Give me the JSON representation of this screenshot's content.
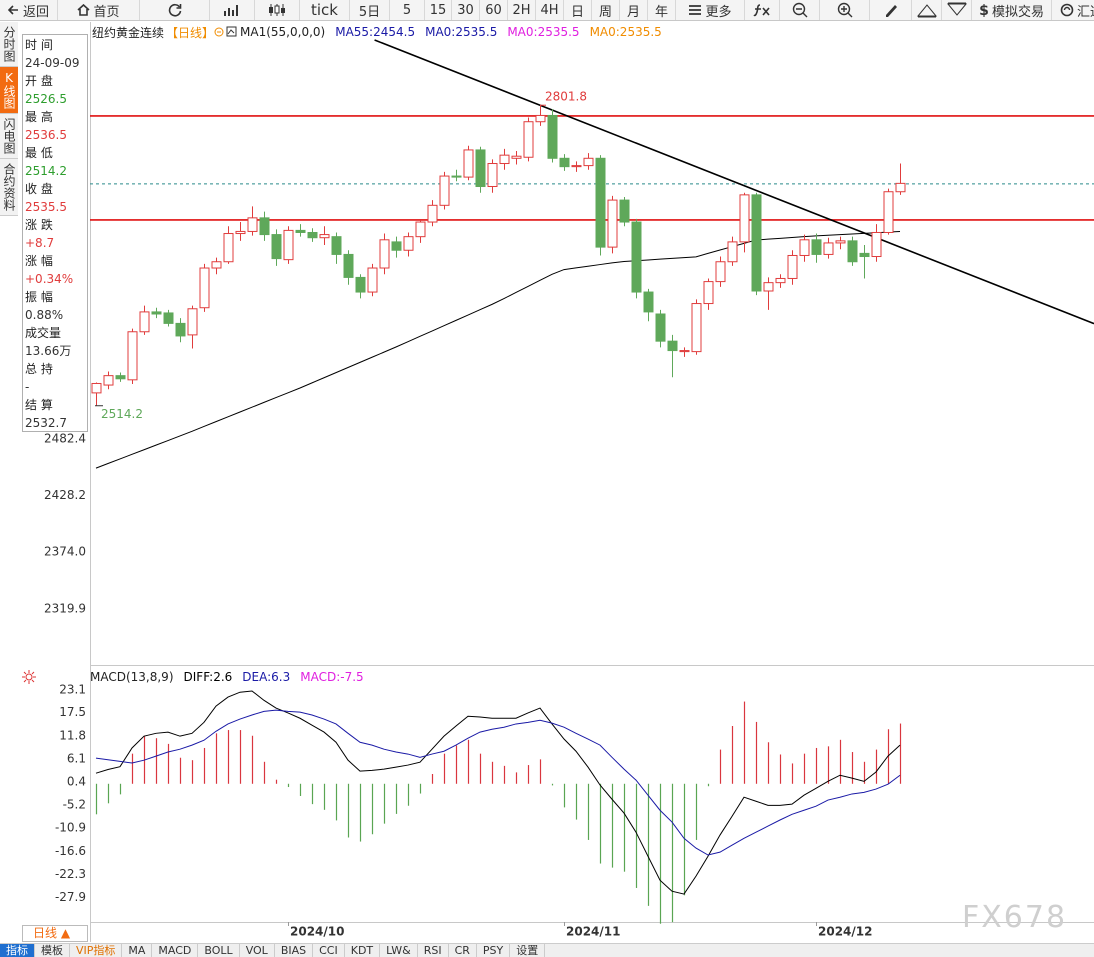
{
  "toolbar": {
    "items": [
      "返回",
      "首页",
      "tick",
      "5日",
      "5",
      "15",
      "30",
      "60",
      "2H",
      "4H",
      "日",
      "周",
      "月",
      "年",
      "更多",
      "模拟交易",
      "汇通"
    ]
  },
  "sidebar": {
    "tabs": [
      "分时图",
      "K线图",
      "闪电图",
      "合约资料"
    ],
    "active": 1
  },
  "info_panel": {
    "rows": [
      {
        "label": "时 间",
        "value": "24-09-09",
        "color": "#333333"
      },
      {
        "label": "开 盘",
        "value": "2526.5",
        "color": "#2e9e2e"
      },
      {
        "label": "最 高",
        "value": "2536.5",
        "color": "#e03c3c"
      },
      {
        "label": "最 低",
        "value": "2514.2",
        "color": "#2e9e2e"
      },
      {
        "label": "收 盘",
        "value": "2535.5",
        "color": "#e03c3c"
      },
      {
        "label": "涨 跌",
        "value": "+8.7",
        "color": "#e03c3c"
      },
      {
        "label": "涨 幅",
        "value": "+0.34%",
        "color": "#e03c3c"
      },
      {
        "label": "振 幅",
        "value": "0.88%",
        "color": "#333333"
      },
      {
        "label": "成交量",
        "value": "13.66万",
        "color": "#333333"
      },
      {
        "label": "总 持",
        "value": "-",
        "color": "#333333"
      },
      {
        "label": "结 算",
        "value": "2532.7",
        "color": "#333333"
      }
    ]
  },
  "chart_data": [
    {
      "type": "candlestick",
      "title": "纽约黄金连续",
      "period": "【日线】",
      "indicator": "MA1(55,0,0,0)",
      "legend_items": [
        {
          "label": "MA55:2454.5",
          "color": "#1a1aa6"
        },
        {
          "label": "MA0:2535.5",
          "color": "#1a1aa6"
        },
        {
          "label": "MA0:2535.5",
          "color": "#e020e0"
        },
        {
          "label": "MA0:2535.5",
          "color": "#f08c00"
        }
      ],
      "up_color": "#e03c3c",
      "down_color": "#5fa85a",
      "candles": [
        [
          2526.5,
          2536.5,
          2514.2,
          2535.5
        ],
        [
          2534,
          2547,
          2530,
          2543
        ],
        [
          2543,
          2546,
          2537,
          2540
        ],
        [
          2539,
          2588,
          2535,
          2585
        ],
        [
          2585,
          2610,
          2582,
          2604
        ],
        [
          2604,
          2608,
          2598,
          2602
        ],
        [
          2603,
          2606,
          2590,
          2593
        ],
        [
          2593,
          2598,
          2575,
          2581
        ],
        [
          2582,
          2610,
          2569,
          2607
        ],
        [
          2608,
          2650,
          2604,
          2646
        ],
        [
          2646,
          2656,
          2640,
          2652
        ],
        [
          2652,
          2686,
          2650,
          2679
        ],
        [
          2679,
          2690,
          2672,
          2681
        ],
        [
          2681,
          2705,
          2677,
          2694
        ],
        [
          2694,
          2700,
          2672,
          2678
        ],
        [
          2678,
          2683,
          2648,
          2655
        ],
        [
          2654,
          2686,
          2650,
          2682
        ],
        [
          2682,
          2688,
          2676,
          2680
        ],
        [
          2680,
          2684,
          2671,
          2675
        ],
        [
          2675,
          2686,
          2668,
          2678
        ],
        [
          2676,
          2680,
          2650,
          2659
        ],
        [
          2659,
          2663,
          2630,
          2637
        ],
        [
          2637,
          2640,
          2617,
          2623
        ],
        [
          2623,
          2650,
          2619,
          2646
        ],
        [
          2646,
          2679,
          2640,
          2673
        ],
        [
          2671,
          2676,
          2656,
          2663
        ],
        [
          2663,
          2680,
          2657,
          2676
        ],
        [
          2676,
          2692,
          2670,
          2690
        ],
        [
          2690,
          2711,
          2686,
          2706
        ],
        [
          2706,
          2738,
          2702,
          2734
        ],
        [
          2734,
          2740,
          2729,
          2733
        ],
        [
          2733,
          2763,
          2730,
          2759
        ],
        [
          2759,
          2762,
          2718,
          2724
        ],
        [
          2724,
          2750,
          2718,
          2746
        ],
        [
          2746,
          2760,
          2740,
          2754
        ],
        [
          2751,
          2758,
          2745,
          2753
        ],
        [
          2752,
          2790,
          2748,
          2786
        ],
        [
          2786,
          2801.8,
          2782,
          2792
        ],
        [
          2792,
          2798,
          2747,
          2751
        ],
        [
          2751,
          2755,
          2739,
          2743
        ],
        [
          2743,
          2748,
          2738,
          2744
        ],
        [
          2744,
          2756,
          2740,
          2751
        ],
        [
          2751,
          2754,
          2658,
          2666
        ],
        [
          2666,
          2715,
          2660,
          2711
        ],
        [
          2711,
          2714,
          2686,
          2690
        ],
        [
          2690,
          2693,
          2617,
          2623
        ],
        [
          2623,
          2626,
          2595,
          2604
        ],
        [
          2602,
          2606,
          2570,
          2576
        ],
        [
          2576,
          2582,
          2541.5,
          2567
        ],
        [
          2566,
          2570,
          2561,
          2567
        ],
        [
          2566,
          2616,
          2563,
          2612
        ],
        [
          2612,
          2636,
          2606,
          2633
        ],
        [
          2633,
          2657,
          2628,
          2652
        ],
        [
          2652,
          2676,
          2648,
          2671
        ],
        [
          2671,
          2718,
          2661,
          2716
        ],
        [
          2716,
          2718,
          2620,
          2624
        ],
        [
          2624,
          2637,
          2606,
          2632
        ],
        [
          2632,
          2640,
          2627,
          2636
        ],
        [
          2636,
          2663,
          2630,
          2658
        ],
        [
          2658,
          2678,
          2652,
          2673
        ],
        [
          2673,
          2679,
          2651,
          2659
        ],
        [
          2659,
          2675,
          2655,
          2670
        ],
        [
          2670,
          2676,
          2664,
          2672
        ],
        [
          2672,
          2676,
          2648,
          2652
        ],
        [
          2660,
          2668,
          2636,
          2657
        ],
        [
          2657,
          2688,
          2652,
          2680
        ],
        [
          2680,
          2722,
          2678,
          2719
        ],
        [
          2719,
          2746,
          2716,
          2727
        ]
      ],
      "ma": {
        "color": "#000000",
        "values": [
          2454.5,
          2458.9,
          2463.3,
          2467.7,
          2472.1,
          2476.5,
          2480.9,
          2485.3,
          2489.7,
          2494.4,
          2499,
          2503.6,
          2508.2,
          2512.8,
          2517.4,
          2522,
          2526.6,
          2531.2,
          2536.1,
          2541,
          2545.9,
          2550.8,
          2555.7,
          2560.6,
          2565.5,
          2570.4,
          2575.5,
          2580.6,
          2585.7,
          2590.8,
          2595.9,
          2601,
          2606.1,
          2611.2,
          2616.8,
          2622.6,
          2628.4,
          2634.2,
          2640,
          2644.5,
          2646.1,
          2647.7,
          2649.3,
          2650.9,
          2652.2,
          2653,
          2653.7,
          2654.5,
          2655.2,
          2656,
          2656.7,
          2660,
          2663.2,
          2666.4,
          2669.6,
          2672.8,
          2673.6,
          2674.4,
          2675.2,
          2676,
          2676.8,
          2677.4,
          2678,
          2678.6,
          2679.2,
          2679.8,
          2680.4,
          2681
        ]
      },
      "hlines": [
        {
          "value": 2791.5,
          "color": "#e01010"
        },
        {
          "value": 2692,
          "color": "#e01010"
        }
      ],
      "last_price_line_color": "#2a8a8a",
      "trendline": {
        "x": [
          37,
          67
        ],
        "y": [
          2801.8,
          2666
        ],
        "color": "#000000"
      },
      "ylim": [
        2266.1,
        2864.2
      ],
      "yticks": [
        2482.4,
        2428.2,
        {
          "value": 2374,
          "label": "2374.0"
        },
        2319.9
      ]
    },
    {
      "type": "macd",
      "title": "MACD(13,8,9)",
      "legend_items": [
        {
          "label": "DIFF:2.6",
          "color": "#000000"
        },
        {
          "label": "DEA:6.3",
          "color": "#1a1aa6"
        },
        {
          "label": "MACD:-7.5",
          "color": "#e020e0"
        }
      ],
      "categories": [
        null,
        null,
        null,
        null,
        null,
        null,
        null,
        null,
        null,
        null,
        null,
        null,
        null,
        null,
        null,
        null,
        "2024/10",
        null,
        null,
        null,
        null,
        null,
        null,
        null,
        null,
        null,
        null,
        null,
        null,
        null,
        null,
        null,
        null,
        null,
        null,
        null,
        null,
        null,
        null,
        "2024/11",
        null,
        null,
        null,
        null,
        null,
        null,
        null,
        null,
        null,
        null,
        null,
        null,
        null,
        null,
        null,
        null,
        null,
        null,
        null,
        null,
        "2024/12",
        null,
        null,
        null,
        null,
        null,
        null,
        null
      ],
      "series": [
        {
          "color": "#000000",
          "values": [
            2.6,
            3.5,
            4.2,
            8.8,
            11.7,
            12.4,
            12.7,
            11.7,
            12.4,
            15.1,
            19.1,
            21.3,
            22.5,
            22.8,
            20.5,
            18.6,
            17.4,
            16.1,
            14.4,
            12.7,
            10.2,
            5.8,
            3.1,
            3.3,
            3.6,
            4.1,
            4.6,
            5.3,
            8.5,
            11.7,
            14.2,
            16.6,
            16.4,
            16.1,
            16.1,
            16.1,
            17.4,
            18.6,
            14.7,
            11.0,
            8.0,
            4.1,
            -0.3,
            -3.8,
            -7.2,
            -11.9,
            -17.8,
            -23.7,
            -26.4,
            -27.1,
            -22.7,
            -17.8,
            -12.6,
            -8.0,
            -3.3,
            -4.3,
            -5.3,
            -5.3,
            -5.0,
            -2.8,
            -1.1,
            0.6,
            2.1,
            1.4,
            0.6,
            2.9,
            6.8,
            9.5
          ]
        },
        {
          "color": "#1a1aa6",
          "values": [
            6.3,
            5.9,
            5.5,
            5.1,
            5.8,
            6.8,
            7.8,
            8.5,
            9.5,
            10.7,
            12.9,
            14.7,
            15.9,
            16.9,
            17.8,
            18.1,
            17.8,
            17.6,
            16.9,
            15.9,
            14.7,
            12.4,
            10.2,
            9.5,
            8.5,
            7.8,
            7.3,
            6.5,
            7.3,
            8.0,
            9.5,
            11.2,
            12.7,
            13.4,
            13.9,
            14.7,
            15.1,
            15.6,
            14.9,
            13.9,
            12.4,
            11.0,
            9.5,
            6.5,
            3.6,
            0.9,
            -2.8,
            -6.5,
            -9.4,
            -13.4,
            -15.8,
            -17.5,
            -16.8,
            -15.1,
            -13.4,
            -11.9,
            -10.4,
            -8.9,
            -7.5,
            -6.5,
            -5.5,
            -4.0,
            -3.3,
            -2.5,
            -2.1,
            -1.3,
            -0.1,
            2.1
          ]
        }
      ],
      "histogram": {
        "up_color": "#d9363e",
        "down_color": "#5aa552",
        "values": [
          -7.5,
          -4.8,
          -2.6,
          7.4,
          11.8,
          11.2,
          9.8,
          6.4,
          5.8,
          8.8,
          12.4,
          13.2,
          13.2,
          11.8,
          5.4,
          1.0,
          -0.8,
          -3.0,
          -5.0,
          -6.4,
          -9.0,
          -13.2,
          -14.2,
          -12.4,
          -9.8,
          -7.4,
          -5.4,
          -2.4,
          2.4,
          7.4,
          9.4,
          10.8,
          7.4,
          5.4,
          4.4,
          2.8,
          4.6,
          6.0,
          -0.4,
          -5.8,
          -8.8,
          -13.8,
          -19.6,
          -20.6,
          -21.6,
          -25.6,
          -30.0,
          -34.4,
          -34.0,
          -27.4,
          -13.8,
          -0.6,
          8.4,
          14.2,
          20.2,
          15.2,
          10.2,
          7.2,
          5.0,
          7.4,
          8.8,
          9.2,
          10.8,
          7.8,
          5.4,
          8.4,
          13.4,
          14.8
        ]
      },
      "ylim": [
        -34.7,
        25.5
      ],
      "yticks": [
        23.1,
        17.5,
        11.8,
        6.1,
        0.4,
        -5.2,
        -10.9,
        -16.6,
        -22.3,
        -27.9
      ]
    }
  ],
  "footer": {
    "period": "日线 ▲",
    "tabs": [
      "指标",
      "模板",
      "VIP指标",
      "MA",
      "MACD",
      "BOLL",
      "VOL",
      "BIAS",
      "CCI",
      "KDT",
      "LW&",
      "RSI",
      "CR",
      "PSY",
      "设置"
    ],
    "active": 0
  },
  "watermark": "FX678"
}
